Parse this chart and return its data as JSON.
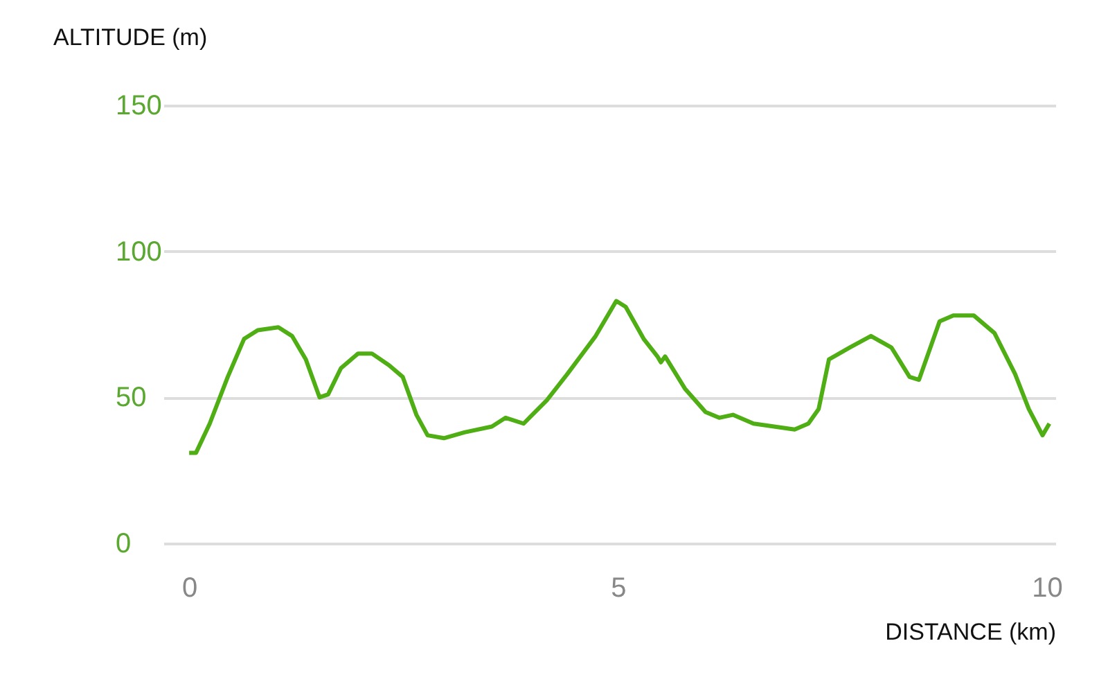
{
  "chart_data": {
    "type": "line",
    "xlabel": "DISTANCE (km)",
    "ylabel": "ALTITUDE (m)",
    "x": [
      0,
      0.08,
      0.24,
      0.45,
      0.64,
      0.8,
      1.04,
      1.2,
      1.36,
      1.52,
      1.62,
      1.77,
      1.97,
      2.13,
      2.33,
      2.49,
      2.65,
      2.78,
      2.97,
      3.21,
      3.53,
      3.69,
      3.9,
      4.17,
      4.41,
      4.74,
      4.98,
      5.09,
      5.3,
      5.46,
      5.5,
      5.55,
      5.78,
      6.02,
      6.18,
      6.34,
      6.58,
      6.82,
      7.06,
      7.22,
      7.34,
      7.46,
      7.7,
      7.95,
      8.19,
      8.4,
      8.51,
      8.75,
      8.91,
      9.15,
      9.39,
      9.63,
      9.79,
      9.95,
      10.03
    ],
    "series": [
      {
        "color": "#4fae14",
        "values": [
          31,
          31,
          41,
          57,
          70,
          73,
          74,
          71,
          63,
          50,
          51,
          60,
          65,
          65,
          61,
          57,
          44,
          37,
          36,
          38,
          40,
          43,
          41,
          49,
          58,
          71,
          83,
          81,
          70,
          64,
          62,
          64,
          53,
          45,
          43,
          44,
          41,
          40,
          39,
          41,
          46,
          63,
          67,
          71,
          67,
          57,
          56,
          76,
          78,
          78,
          72,
          58,
          46,
          37,
          41
        ]
      }
    ],
    "xlim": [
      -0.3,
      10.1
    ],
    "ylim": [
      0,
      150
    ],
    "xticks": [
      0,
      5,
      10
    ],
    "yticks": [
      0,
      50,
      100,
      150
    ],
    "grid": "y",
    "marker": "none",
    "line_style": "solid"
  }
}
